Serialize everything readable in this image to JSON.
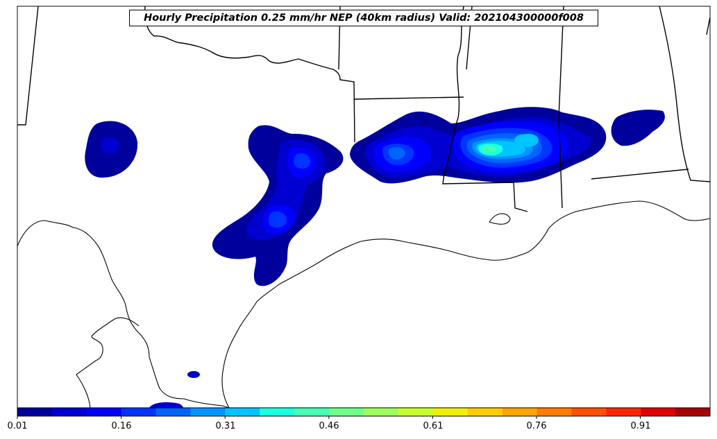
{
  "title": "Hourly Precipitation 0.25 mm/hr NEP (40km radius) Valid: 202104300000f008",
  "colorbar": {
    "ticks": [
      "0.01",
      "0.16",
      "0.31",
      "0.46",
      "0.61",
      "0.76",
      "0.91"
    ],
    "colors": [
      "#00009c",
      "#0000d0",
      "#0000ff",
      "#0034ff",
      "#0064ff",
      "#0094ff",
      "#00c4ff",
      "#1cffe0",
      "#46ffb4",
      "#70ff88",
      "#9cff5c",
      "#c8ff30",
      "#f0f000",
      "#ffcc00",
      "#ffa400",
      "#ff7c00",
      "#ff5000",
      "#ff2800",
      "#e00000",
      "#a80000"
    ]
  },
  "legend_levels": [
    "0.01-0.06",
    "0.06-0.11",
    "0.11-0.16",
    "0.16-0.21",
    "0.21-0.26",
    "0.26-0.31",
    "0.31-0.36",
    "0.36-0.41"
  ]
}
